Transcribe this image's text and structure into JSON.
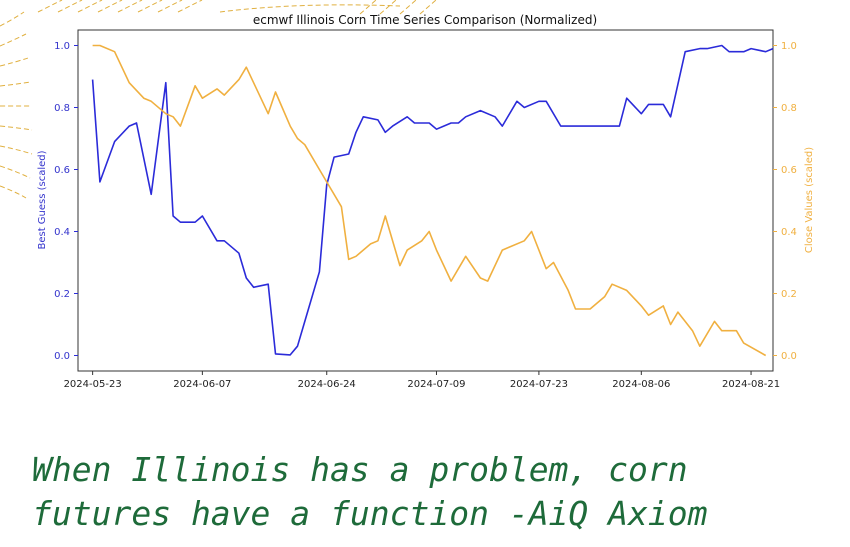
{
  "caption": "When Illinois has a problem, corn futures have a function -AiQ Axiom",
  "colors": {
    "best_guess": "#2b2bd9",
    "close": "#f0b040",
    "caption": "#1e6b3a",
    "deco": "#e0b040"
  },
  "chart_data": {
    "type": "line",
    "title": "ecmwf Illinois Corn Time Series Comparison (Normalized)",
    "xlabel": "",
    "y_left_label": "Best Guess (scaled)",
    "y_right_label": "Close Values (scaled)",
    "x_ticks": [
      "2024-05-23",
      "2024-06-07",
      "2024-06-24",
      "2024-07-09",
      "2024-07-23",
      "2024-08-06",
      "2024-08-21"
    ],
    "x_range": [
      "2024-05-21",
      "2024-08-24"
    ],
    "y_left_ticks": [
      "0.0",
      "0.2",
      "0.4",
      "0.6",
      "0.8",
      "1.0"
    ],
    "y_right_ticks": [
      "0.0",
      "0.2",
      "0.4",
      "0.6",
      "0.8",
      "1.0"
    ],
    "ylim": [
      -0.05,
      1.05
    ],
    "grid": false,
    "series": [
      {
        "axis": "left",
        "values": [
          [
            "2024-05-23",
            0.89
          ],
          [
            "2024-05-24",
            0.56
          ],
          [
            "2024-05-26",
            0.69
          ],
          [
            "2024-05-28",
            0.74
          ],
          [
            "2024-05-29",
            0.75
          ],
          [
            "2024-05-31",
            0.52
          ],
          [
            "2024-06-02",
            0.88
          ],
          [
            "2024-06-03",
            0.45
          ],
          [
            "2024-06-04",
            0.43
          ],
          [
            "2024-06-06",
            0.43
          ],
          [
            "2024-06-07",
            0.45
          ],
          [
            "2024-06-09",
            0.37
          ],
          [
            "2024-06-10",
            0.37
          ],
          [
            "2024-06-12",
            0.33
          ],
          [
            "2024-06-13",
            0.25
          ],
          [
            "2024-06-14",
            0.22
          ],
          [
            "2024-06-16",
            0.23
          ],
          [
            "2024-06-17",
            0.005
          ],
          [
            "2024-06-19",
            0.002
          ],
          [
            "2024-06-20",
            0.03
          ],
          [
            "2024-06-21",
            0.11
          ],
          [
            "2024-06-23",
            0.27
          ],
          [
            "2024-06-24",
            0.55
          ],
          [
            "2024-06-25",
            0.64
          ],
          [
            "2024-06-27",
            0.65
          ],
          [
            "2024-06-28",
            0.72
          ],
          [
            "2024-06-29",
            0.77
          ],
          [
            "2024-07-01",
            0.76
          ],
          [
            "2024-07-02",
            0.72
          ],
          [
            "2024-07-03",
            0.74
          ],
          [
            "2024-07-05",
            0.77
          ],
          [
            "2024-07-06",
            0.75
          ],
          [
            "2024-07-08",
            0.75
          ],
          [
            "2024-07-09",
            0.73
          ],
          [
            "2024-07-11",
            0.75
          ],
          [
            "2024-07-12",
            0.75
          ],
          [
            "2024-07-13",
            0.77
          ],
          [
            "2024-07-15",
            0.79
          ],
          [
            "2024-07-17",
            0.77
          ],
          [
            "2024-07-18",
            0.74
          ],
          [
            "2024-07-20",
            0.82
          ],
          [
            "2024-07-21",
            0.8
          ],
          [
            "2024-07-23",
            0.82
          ],
          [
            "2024-07-24",
            0.82
          ],
          [
            "2024-07-26",
            0.74
          ],
          [
            "2024-07-28",
            0.74
          ],
          [
            "2024-07-31",
            0.74
          ],
          [
            "2024-08-03",
            0.74
          ],
          [
            "2024-08-04",
            0.83
          ],
          [
            "2024-08-06",
            0.78
          ],
          [
            "2024-08-07",
            0.81
          ],
          [
            "2024-08-09",
            0.81
          ],
          [
            "2024-08-10",
            0.77
          ],
          [
            "2024-08-12",
            0.98
          ],
          [
            "2024-08-14",
            0.99
          ],
          [
            "2024-08-15",
            0.99
          ],
          [
            "2024-08-17",
            1.0
          ],
          [
            "2024-08-18",
            0.98
          ],
          [
            "2024-08-20",
            0.98
          ],
          [
            "2024-08-21",
            0.99
          ],
          [
            "2024-08-23",
            0.98
          ],
          [
            "2024-08-24",
            0.99
          ]
        ]
      },
      {
        "axis": "right",
        "values": [
          [
            "2024-05-23",
            1.0
          ],
          [
            "2024-05-24",
            1.0
          ],
          [
            "2024-05-26",
            0.98
          ],
          [
            "2024-05-27",
            0.93
          ],
          [
            "2024-05-28",
            0.88
          ],
          [
            "2024-05-30",
            0.83
          ],
          [
            "2024-05-31",
            0.82
          ],
          [
            "2024-06-02",
            0.78
          ],
          [
            "2024-06-03",
            0.77
          ],
          [
            "2024-06-04",
            0.74
          ],
          [
            "2024-06-06",
            0.87
          ],
          [
            "2024-06-07",
            0.83
          ],
          [
            "2024-06-09",
            0.86
          ],
          [
            "2024-06-10",
            0.84
          ],
          [
            "2024-06-12",
            0.89
          ],
          [
            "2024-06-13",
            0.93
          ],
          [
            "2024-06-14",
            0.88
          ],
          [
            "2024-06-16",
            0.78
          ],
          [
            "2024-06-17",
            0.85
          ],
          [
            "2024-06-19",
            0.74
          ],
          [
            "2024-06-20",
            0.7
          ],
          [
            "2024-06-21",
            0.68
          ],
          [
            "2024-06-23",
            0.6
          ],
          [
            "2024-06-24",
            0.56
          ],
          [
            "2024-06-26",
            0.48
          ],
          [
            "2024-06-27",
            0.31
          ],
          [
            "2024-06-28",
            0.32
          ],
          [
            "2024-06-30",
            0.36
          ],
          [
            "2024-07-01",
            0.37
          ],
          [
            "2024-07-02",
            0.45
          ],
          [
            "2024-07-04",
            0.29
          ],
          [
            "2024-07-05",
            0.34
          ],
          [
            "2024-07-07",
            0.37
          ],
          [
            "2024-07-08",
            0.4
          ],
          [
            "2024-07-09",
            0.34
          ],
          [
            "2024-07-11",
            0.24
          ],
          [
            "2024-07-12",
            0.28
          ],
          [
            "2024-07-13",
            0.32
          ],
          [
            "2024-07-15",
            0.25
          ],
          [
            "2024-07-16",
            0.24
          ],
          [
            "2024-07-18",
            0.34
          ],
          [
            "2024-07-19",
            0.35
          ],
          [
            "2024-07-21",
            0.37
          ],
          [
            "2024-07-22",
            0.4
          ],
          [
            "2024-07-24",
            0.28
          ],
          [
            "2024-07-25",
            0.3
          ],
          [
            "2024-07-27",
            0.21
          ],
          [
            "2024-07-28",
            0.15
          ],
          [
            "2024-07-30",
            0.15
          ],
          [
            "2024-08-01",
            0.19
          ],
          [
            "2024-08-02",
            0.23
          ],
          [
            "2024-08-04",
            0.21
          ],
          [
            "2024-08-06",
            0.16
          ],
          [
            "2024-08-07",
            0.13
          ],
          [
            "2024-08-09",
            0.16
          ],
          [
            "2024-08-10",
            0.1
          ],
          [
            "2024-08-11",
            0.14
          ],
          [
            "2024-08-13",
            0.08
          ],
          [
            "2024-08-14",
            0.03
          ],
          [
            "2024-08-16",
            0.11
          ],
          [
            "2024-08-17",
            0.08
          ],
          [
            "2024-08-19",
            0.08
          ],
          [
            "2024-08-20",
            0.04
          ],
          [
            "2024-08-23",
            0.0
          ]
        ]
      }
    ]
  }
}
